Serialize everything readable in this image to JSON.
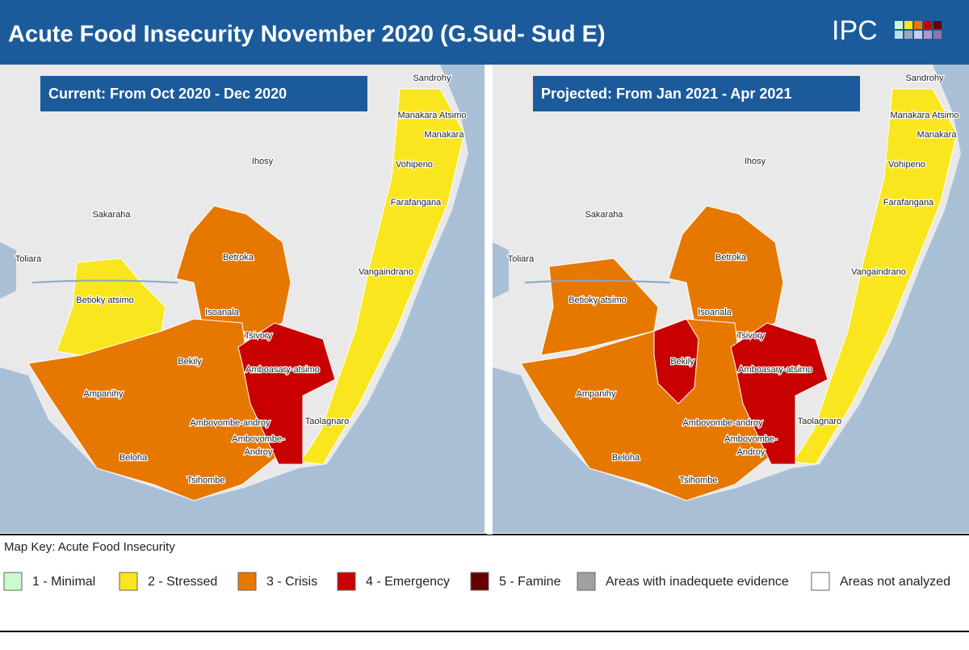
{
  "header": {
    "title": "Acute Food Insecurity November 2020 (G.Sud- Sud E)",
    "logo": "IPC"
  },
  "maps": [
    {
      "label": "Current: From Oct 2020 - Dec 2020",
      "places": [
        "Sandrohy",
        "Manakara Atsimo",
        "Manakara",
        "Ihosy",
        "Vohipeno",
        "Farafangana",
        "Sakaraha",
        "Toliara",
        "Betroka",
        "Vangaindrano",
        "Betioky atsimo",
        "Isoanala",
        "Tsivory",
        "Bekily",
        "Amboasary-atsimo",
        "Ampanihy",
        "Ambovombe-androy",
        "Ambovombe-",
        "Androy",
        "Beloha",
        "Taolagnaro",
        "Tsihombe"
      ]
    },
    {
      "label": "Projected: From Jan 2021 - Apr 2021",
      "places": [
        "Sandrohy",
        "Manakara Atsimo",
        "Manakara",
        "Ihosy",
        "Vohipeno",
        "Farafangana",
        "Sakaraha",
        "Toliara",
        "Betroka",
        "Vangaindrano",
        "Betioky atsimo",
        "Isoanala",
        "Tsivory",
        "Bekily",
        "Amboasary-atsimo",
        "Ampanihy",
        "Ambovombe-androy",
        "Ambovombe-",
        "Androy",
        "Beloha",
        "Taolagnaro",
        "Tsihombe"
      ]
    }
  ],
  "legend": {
    "title": "Map Key: Acute Food Insecurity",
    "items": [
      {
        "label": "1 - Minimal",
        "color": "#cdfacd"
      },
      {
        "label": "2 - Stressed",
        "color": "#fae61e"
      },
      {
        "label": "3 - Crisis",
        "color": "#e67800"
      },
      {
        "label": "4 - Emergency",
        "color": "#c80000"
      },
      {
        "label": "5 - Famine",
        "color": "#640000"
      },
      {
        "label": "Areas with inadequete evidence",
        "color": "#a0a0a0"
      },
      {
        "label": "Areas not analyzed",
        "color": "#ffffff"
      }
    ]
  }
}
